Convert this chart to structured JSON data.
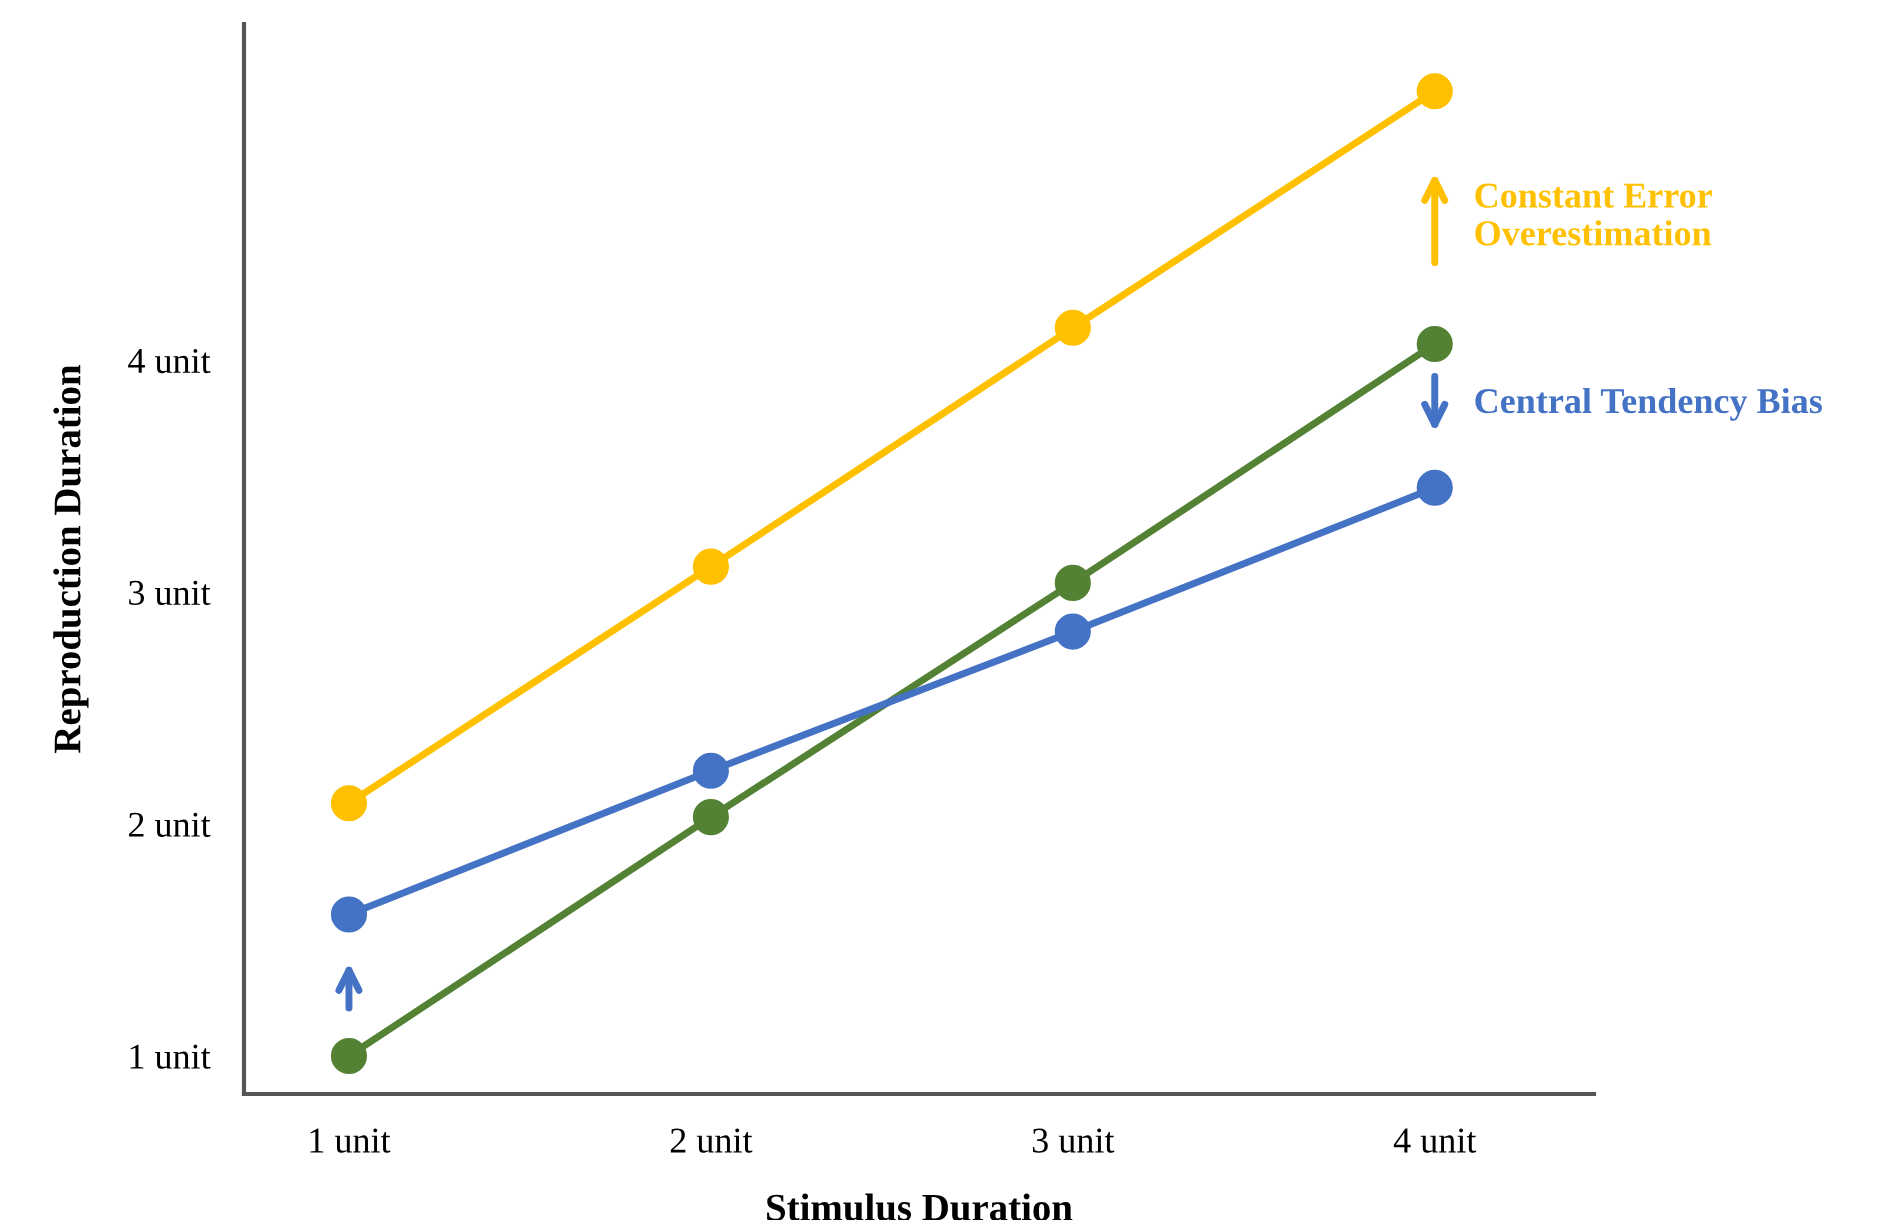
{
  "chart_data": {
    "type": "line",
    "xlabel": "Stimulus Duration",
    "ylabel": "Reproduction Duration",
    "x": [
      1,
      2,
      3,
      4
    ],
    "xlim": [
      0.71,
      4.44
    ],
    "ylim": [
      0.836,
      5.45
    ],
    "xticks": [
      {
        "value": 1,
        "label": "1 unit"
      },
      {
        "value": 2,
        "label": "2 unit"
      },
      {
        "value": 3,
        "label": "3 unit"
      },
      {
        "value": 4,
        "label": "4 unit"
      }
    ],
    "yticks": [
      {
        "value": 1,
        "label": "1 unit"
      },
      {
        "value": 2,
        "label": "2 unit"
      },
      {
        "value": 3,
        "label": "3 unit"
      },
      {
        "value": 4,
        "label": "4 unit"
      }
    ],
    "marker": "circle",
    "line_style": "solid",
    "grid": false,
    "legend": false,
    "series": [
      {
        "color": "#ffc000",
        "values": [
          2.09,
          3.11,
          4.14,
          5.16
        ]
      },
      {
        "color": "#548235",
        "values": [
          1.0,
          2.03,
          3.04,
          4.07
        ]
      },
      {
        "color": "#4472c4",
        "values": [
          1.61,
          2.23,
          2.83,
          3.45
        ]
      }
    ],
    "annotations": [
      "Constant Error\nOverestimation",
      "Central Tendency Bias"
    ]
  }
}
